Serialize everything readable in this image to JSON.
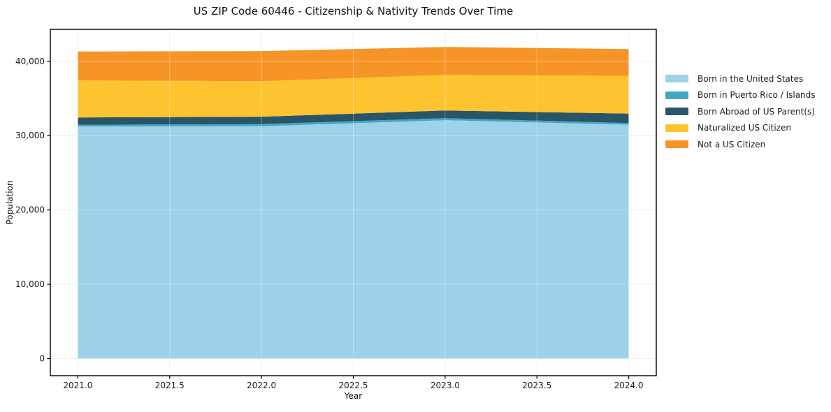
{
  "chart": {
    "title": "US ZIP Code 60446 - Citizenship & Nativity Trends Over Time",
    "xlabel": "Year",
    "ylabel": "Population"
  },
  "chart_data": {
    "type": "area",
    "stacked": true,
    "title": "US ZIP Code 60446 - Citizenship & Nativity Trends Over Time",
    "xlabel": "Year",
    "ylabel": "Population",
    "x": [
      2021,
      2022,
      2023,
      2024
    ],
    "series": [
      {
        "name": "Born in the United States",
        "color": "#9ED1EA",
        "values": [
          31220,
          31270,
          32070,
          31460
        ]
      },
      {
        "name": "Born in Puerto Rico / Islands",
        "color": "#41A8C7",
        "values": [
          240,
          280,
          280,
          230
        ]
      },
      {
        "name": "Born Abroad of US Parent(s)",
        "color": "#2A5566",
        "values": [
          980,
          990,
          1030,
          1270
        ]
      },
      {
        "name": "Naturalized US Citizen",
        "color": "#FDC42F",
        "values": [
          4980,
          4780,
          4790,
          5070
        ]
      },
      {
        "name": "Not a US Citizen",
        "color": "#F79428",
        "values": [
          3900,
          4050,
          3760,
          3620
        ]
      }
    ],
    "stack_totals": [
      41320,
      41370,
      41930,
      41650
    ],
    "xlim": [
      2020.85,
      2024.15
    ],
    "ylim": [
      -2300,
      44300
    ],
    "x_ticks": {
      "values": [
        2021.0,
        2021.5,
        2022.0,
        2022.5,
        2023.0,
        2023.5,
        2024.0
      ],
      "labels": [
        "2021.0",
        "2021.5",
        "2022.0",
        "2022.5",
        "2023.0",
        "2023.5",
        "2024.0"
      ]
    },
    "y_ticks": {
      "values": [
        0,
        10000,
        20000,
        30000,
        40000
      ],
      "labels": [
        "0",
        "10,000",
        "20,000",
        "30,000",
        "40,000"
      ]
    },
    "grid": true,
    "legend_position": "center-right-outside",
    "colors": {
      "spine": "#000000",
      "grid_on_white": "#e9e9e9",
      "grid_on_fill": "rgba(255,255,255,0.33)",
      "tick_text": "#1a1a1a",
      "background": "#ffffff"
    }
  }
}
